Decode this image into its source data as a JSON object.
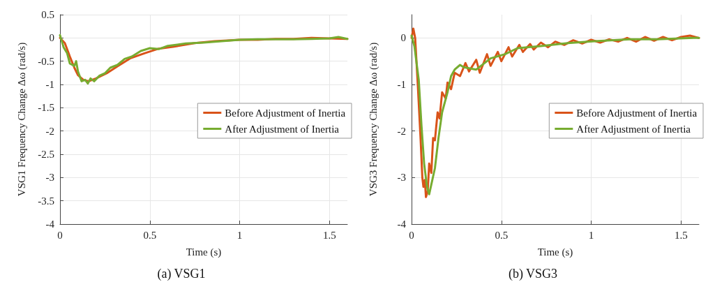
{
  "chart_data": [
    {
      "type": "line",
      "title": "(a) VSG1",
      "xlabel": "Time (s)",
      "ylabel": "VSG1 Frequency Change Δω (rad/s)",
      "xlim": [
        0,
        1.6
      ],
      "xticks": [
        0,
        0.5,
        1,
        1.5
      ],
      "ylim": [
        -4,
        0.5
      ],
      "yticks": [
        -4,
        -3.5,
        -3,
        -2.5,
        -2,
        -1.5,
        -1,
        -0.5,
        0,
        0.5
      ],
      "grid": true,
      "legend": "right",
      "marker": "none",
      "line_style": "solid",
      "series": [
        {
          "name": "Before Adjustment of Inertia",
          "color": "#d95319",
          "x": [
            0,
            0.027,
            0.055,
            0.08,
            0.1,
            0.13,
            0.16,
            0.2,
            0.26,
            0.32,
            0.39,
            0.47,
            0.55,
            0.63,
            0.75,
            0.86,
            1.0,
            1.1,
            1.2,
            1.3,
            1.4,
            1.5,
            1.6
          ],
          "values": [
            0,
            -0.11,
            -0.4,
            -0.64,
            -0.8,
            -0.9,
            -0.93,
            -0.87,
            -0.76,
            -0.61,
            -0.44,
            -0.33,
            -0.23,
            -0.19,
            -0.11,
            -0.07,
            -0.04,
            -0.04,
            -0.02,
            -0.02,
            0,
            -0.01,
            -0.02
          ]
        },
        {
          "name": "After Adjustment of Inertia",
          "color": "#77ac30",
          "x": [
            0,
            0.02,
            0.04,
            0.055,
            0.08,
            0.09,
            0.1,
            0.12,
            0.14,
            0.155,
            0.17,
            0.19,
            0.22,
            0.25,
            0.28,
            0.32,
            0.36,
            0.4,
            0.45,
            0.5,
            0.55,
            0.6,
            0.7,
            0.8,
            0.9,
            1.0,
            1.1,
            1.2,
            1.3,
            1.4,
            1.5,
            1.55,
            1.6
          ],
          "values": [
            0.06,
            -0.2,
            -0.33,
            -0.55,
            -0.6,
            -0.5,
            -0.72,
            -0.93,
            -0.9,
            -0.98,
            -0.87,
            -0.93,
            -0.81,
            -0.76,
            -0.64,
            -0.58,
            -0.45,
            -0.4,
            -0.28,
            -0.22,
            -0.24,
            -0.17,
            -0.12,
            -0.1,
            -0.07,
            -0.04,
            -0.03,
            -0.03,
            -0.03,
            -0.02,
            -0.01,
            0.02,
            -0.02
          ]
        }
      ]
    },
    {
      "type": "line",
      "title": "(b) VSG3",
      "xlabel": "Time (s)",
      "ylabel": "VSG3 Frequency Change Δω (rad/s)",
      "xlim": [
        0,
        1.6
      ],
      "xticks": [
        0,
        0.5,
        1,
        1.5
      ],
      "ylim": [
        -4,
        0.5
      ],
      "yticks": [
        -4,
        -3,
        -2,
        -1,
        0
      ],
      "grid": true,
      "legend": "right",
      "marker": "none",
      "line_style": "solid",
      "series": [
        {
          "name": "Before Adjustment of Inertia",
          "color": "#d95319",
          "x": [
            0,
            0.01,
            0.02,
            0.035,
            0.05,
            0.06,
            0.066,
            0.074,
            0.08,
            0.09,
            0.098,
            0.11,
            0.12,
            0.13,
            0.145,
            0.156,
            0.17,
            0.19,
            0.2,
            0.22,
            0.24,
            0.27,
            0.3,
            0.32,
            0.36,
            0.38,
            0.42,
            0.44,
            0.48,
            0.5,
            0.54,
            0.56,
            0.6,
            0.62,
            0.66,
            0.68,
            0.72,
            0.76,
            0.8,
            0.85,
            0.9,
            0.95,
            1.0,
            1.05,
            1.1,
            1.15,
            1.2,
            1.25,
            1.3,
            1.35,
            1.4,
            1.45,
            1.5,
            1.55,
            1.6
          ],
          "values": [
            0,
            0.2,
            0,
            -1.03,
            -2.15,
            -3.0,
            -3.2,
            -3.05,
            -3.42,
            -3.3,
            -2.7,
            -2.9,
            -2.15,
            -2.2,
            -1.6,
            -1.73,
            -1.17,
            -1.3,
            -0.96,
            -1.1,
            -0.75,
            -0.82,
            -0.54,
            -0.72,
            -0.47,
            -0.75,
            -0.35,
            -0.6,
            -0.3,
            -0.5,
            -0.2,
            -0.4,
            -0.15,
            -0.3,
            -0.13,
            -0.25,
            -0.1,
            -0.2,
            -0.08,
            -0.15,
            -0.05,
            -0.12,
            -0.04,
            -0.1,
            -0.03,
            -0.08,
            0,
            -0.08,
            0.02,
            -0.06,
            0.02,
            -0.05,
            0.02,
            0.05,
            0
          ]
        },
        {
          "name": "After Adjustment of Inertia",
          "color": "#77ac30",
          "x": [
            0,
            0.016,
            0.04,
            0.055,
            0.07,
            0.086,
            0.098,
            0.11,
            0.13,
            0.15,
            0.17,
            0.2,
            0.22,
            0.24,
            0.27,
            0.29,
            0.32,
            0.36,
            0.44,
            0.52,
            0.59,
            0.71,
            0.87,
            1.02,
            1.22,
            1.37,
            1.57,
            1.6
          ],
          "values": [
            0.05,
            -0.18,
            -0.9,
            -1.87,
            -2.7,
            -3.2,
            -3.36,
            -3.15,
            -2.8,
            -2.15,
            -1.6,
            -1.17,
            -0.82,
            -0.68,
            -0.58,
            -0.63,
            -0.65,
            -0.68,
            -0.44,
            -0.35,
            -0.22,
            -0.18,
            -0.11,
            -0.07,
            -0.03,
            -0.03,
            0,
            0
          ]
        }
      ]
    }
  ]
}
